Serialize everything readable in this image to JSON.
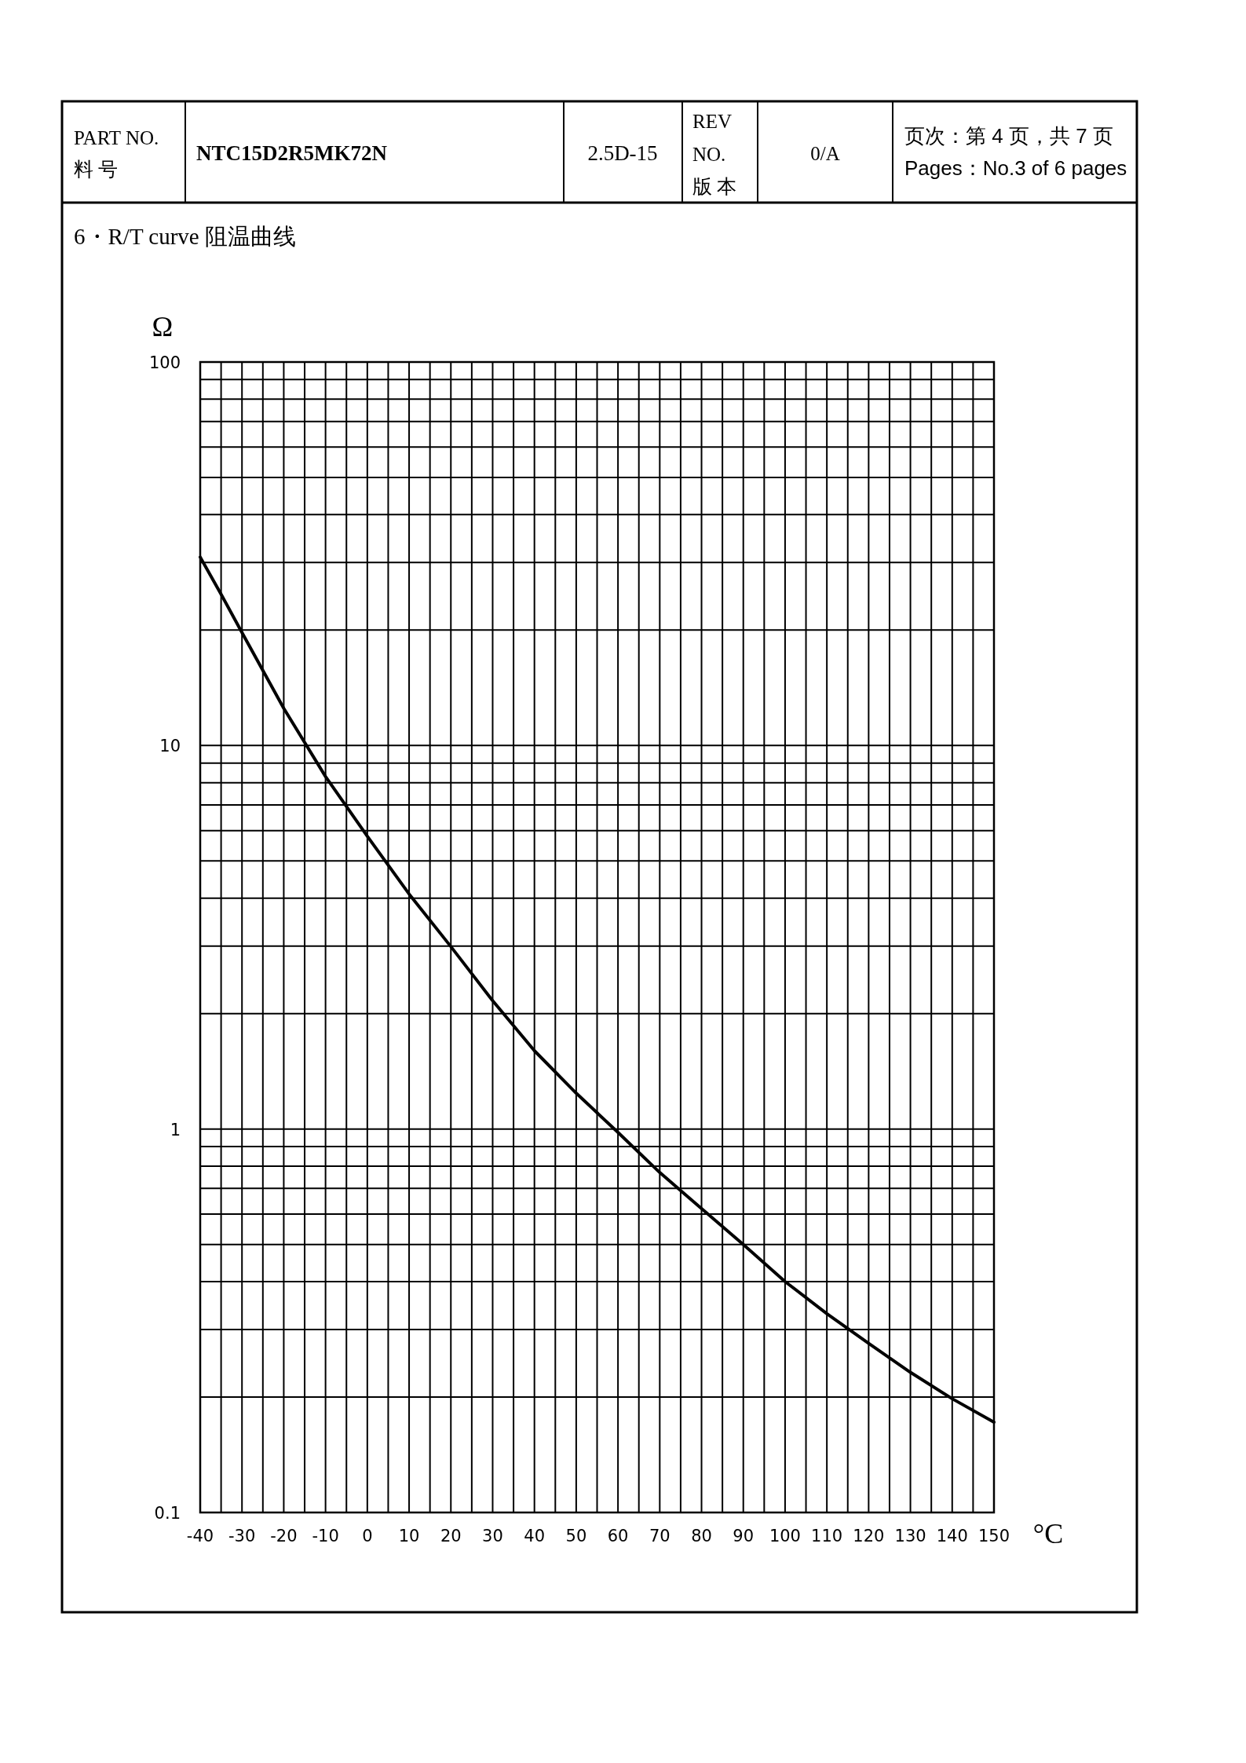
{
  "chart_data": {
    "type": "line",
    "title": "6・R/T curve  阻温曲线",
    "xlabel": "°C",
    "ylabel": "Ω",
    "annotations": [
      "PART NO.",
      "料 号",
      "NTC15D2R5MK72N",
      "2.5D-15",
      "REV",
      "NO.",
      "版 本",
      "0/A",
      "页次：第 4 页，共 7 页",
      "Pages：No.3 of 6 pages"
    ],
    "x": [
      -40,
      -35,
      -30,
      -20,
      -10,
      0,
      10,
      20,
      30,
      40,
      50,
      60,
      70,
      80,
      90,
      100,
      110,
      120,
      130,
      140,
      150
    ],
    "series": [
      {
        "color": "#000000",
        "values": [
          31,
          24.8,
          19.7,
          12.5,
          8.3,
          5.8,
          4.1,
          2.99,
          2.16,
          1.6,
          1.24,
          0.98,
          0.77,
          0.62,
          0.5,
          0.4,
          0.33,
          0.276,
          0.232,
          0.198,
          0.172
        ]
      }
    ],
    "xlim": [
      -40,
      150
    ],
    "ylim": [
      0.1,
      100
    ],
    "xticks": [
      -40,
      -30,
      -20,
      -10,
      0,
      10,
      20,
      30,
      40,
      50,
      60,
      70,
      80,
      90,
      100,
      110,
      120,
      130,
      140,
      150
    ],
    "yticks": [
      0.1,
      1,
      10,
      100
    ],
    "log": "y",
    "grid": true,
    "line_style": "solid"
  }
}
